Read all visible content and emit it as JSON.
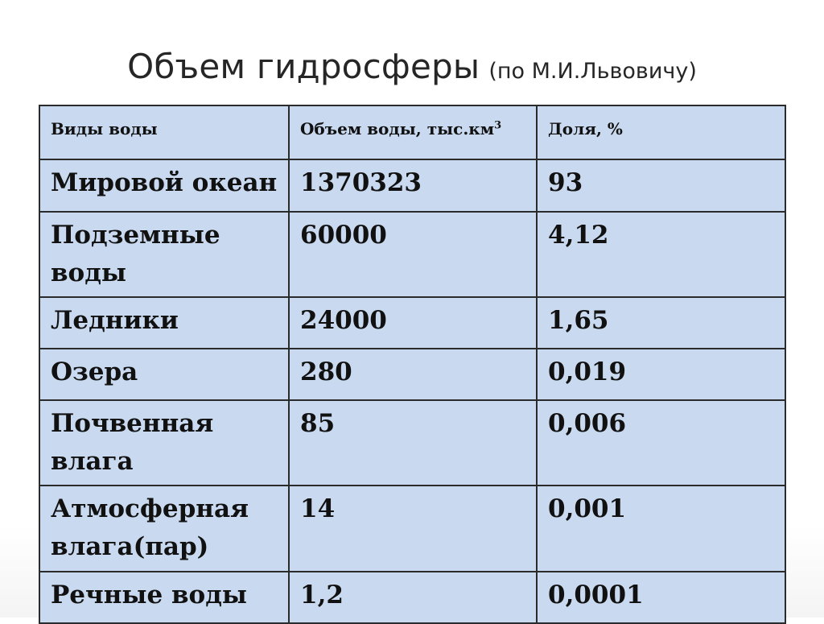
{
  "title": {
    "main": "Объем гидросферы",
    "sub": "(по М.И.Львовичу)"
  },
  "table": {
    "headers": {
      "type": "Виды воды",
      "volume": "Объем воды, тыс.км",
      "volume_sup": "3",
      "share": "Доля, %"
    },
    "rows": [
      {
        "type": "Мировой океан",
        "volume": "1370323",
        "share": "93"
      },
      {
        "type": "Подземные воды",
        "volume": "60000",
        "share": "4,12"
      },
      {
        "type": "Ледники",
        "volume": "24000",
        "share": "1,65"
      },
      {
        "type": "Озера",
        "volume": "280",
        "share": "0,019"
      },
      {
        "type": "Почвенная влага",
        "volume": "85",
        "share": "0,006"
      },
      {
        "type": "Атмосферная влага(пар)",
        "volume": "14",
        "share": "0,001"
      },
      {
        "type": "Речные воды",
        "volume": "1,2",
        "share": "0,0001"
      }
    ]
  },
  "colors": {
    "cell_background": "#c9d9ef",
    "border": "#2b2b2b",
    "title_text": "#262626"
  }
}
